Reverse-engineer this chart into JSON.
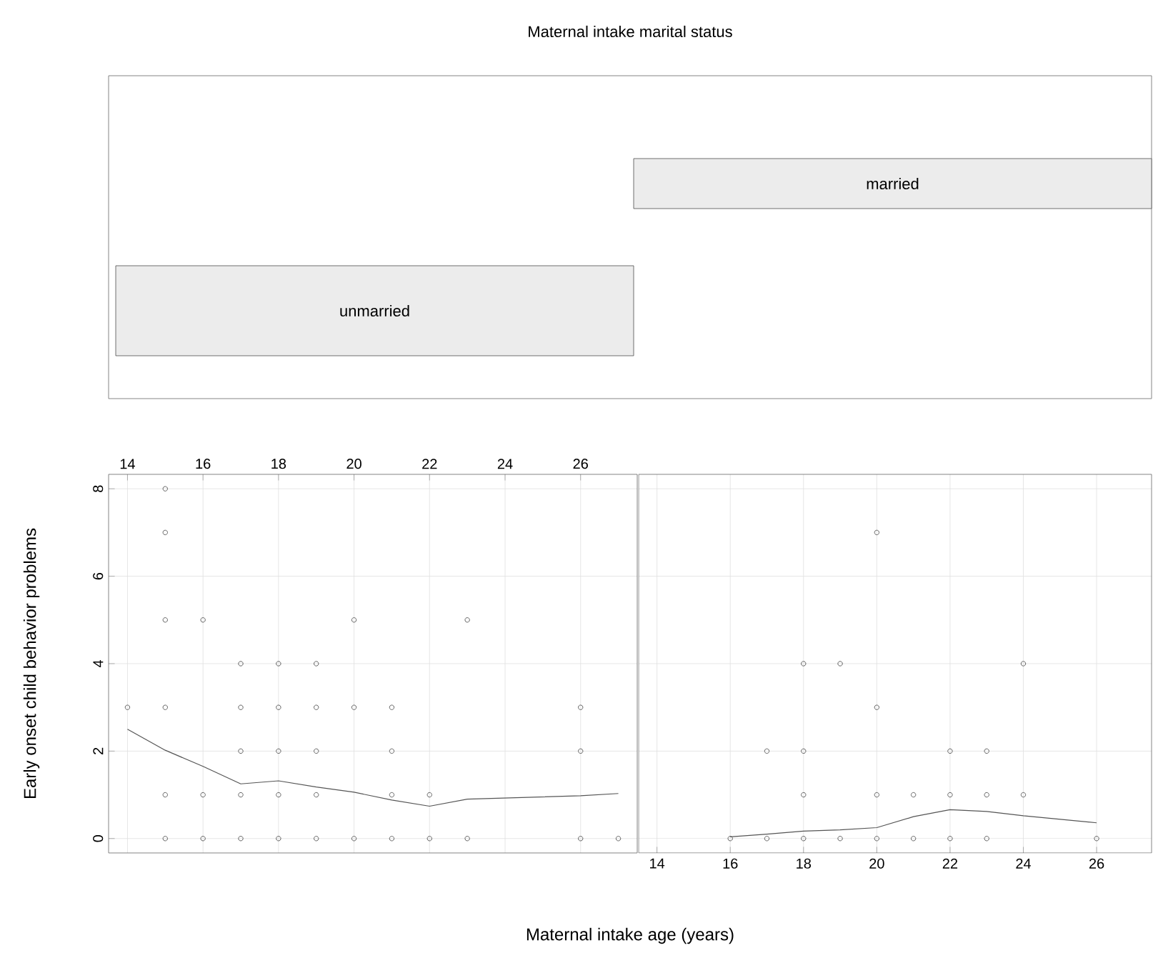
{
  "chart_data": [
    {
      "type": "other",
      "title": "Maternal intake marital status",
      "categories": [
        "unmarried",
        "married"
      ],
      "color": "#ececec"
    },
    {
      "type": "scatter",
      "ylabel": "Early onset child behavior problems",
      "xlim": [
        13.5,
        27.5
      ],
      "ylim": [
        -0.33,
        8.33
      ],
      "xticks": [
        14,
        16,
        18,
        20,
        22,
        24,
        26
      ],
      "yticks": [
        0,
        2,
        4,
        6,
        8
      ],
      "grid": true,
      "series": [
        {
          "type": "scatter",
          "marker": "circle",
          "color": "#404040",
          "x": [
            14,
            15,
            15,
            15,
            15,
            15,
            15,
            16,
            16,
            16,
            17,
            17,
            17,
            17,
            17,
            18,
            18,
            18,
            18,
            18,
            19,
            19,
            19,
            19,
            19,
            20,
            20,
            20,
            21,
            21,
            21,
            21,
            22,
            22,
            23,
            23,
            26,
            26,
            26,
            27
          ],
          "values": [
            3,
            8,
            7,
            5,
            3,
            1,
            0,
            5,
            1,
            0,
            4,
            3,
            2,
            1,
            0,
            4,
            3,
            2,
            1,
            0,
            4,
            3,
            2,
            1,
            0,
            5,
            3,
            0,
            3,
            2,
            1,
            0,
            1,
            0,
            5,
            0,
            3,
            2,
            0,
            0
          ]
        },
        {
          "type": "line",
          "marker": "none",
          "color": "#555555",
          "x": [
            14,
            15,
            16,
            17,
            18,
            19,
            20,
            21,
            22,
            23,
            26,
            27
          ],
          "values": [
            2.5,
            2.02,
            1.65,
            1.25,
            1.32,
            1.18,
            1.06,
            0.88,
            0.74,
            0.9,
            0.98,
            1.03
          ]
        }
      ]
    },
    {
      "type": "scatter",
      "xlabel": "Maternal intake age (years)",
      "xlim": [
        13.5,
        27.5
      ],
      "ylim": [
        -0.33,
        8.33
      ],
      "xticks": [
        14,
        16,
        18,
        20,
        22,
        24,
        26
      ],
      "yticks": [
        0,
        2,
        4,
        6,
        8
      ],
      "grid": true,
      "tick_labels": "x",
      "series": [
        {
          "type": "scatter",
          "marker": "circle",
          "color": "#404040",
          "x": [
            16,
            17,
            17,
            18,
            18,
            18,
            18,
            19,
            19,
            20,
            20,
            20,
            20,
            21,
            21,
            22,
            22,
            22,
            23,
            23,
            23,
            24,
            24,
            26
          ],
          "values": [
            0,
            2,
            0,
            4,
            2,
            1,
            0,
            4,
            0,
            7,
            3,
            1,
            0,
            1,
            0,
            2,
            1,
            0,
            2,
            1,
            0,
            4,
            1,
            0
          ]
        },
        {
          "type": "line",
          "marker": "none",
          "color": "#555555",
          "x": [
            16,
            17,
            18,
            19,
            20,
            21,
            22,
            23,
            24,
            26
          ],
          "values": [
            0.04,
            0.1,
            0.17,
            0.2,
            0.25,
            0.5,
            0.66,
            0.62,
            0.52,
            0.36
          ]
        }
      ]
    }
  ]
}
